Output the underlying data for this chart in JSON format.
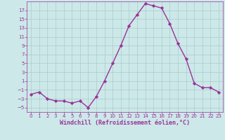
{
  "x": [
    0,
    1,
    2,
    3,
    4,
    5,
    6,
    7,
    8,
    9,
    10,
    11,
    12,
    13,
    14,
    15,
    16,
    17,
    18,
    19,
    20,
    21,
    22,
    23
  ],
  "y": [
    -2,
    -1.5,
    -3,
    -3.5,
    -3.5,
    -4,
    -3.5,
    -5,
    -2.5,
    1,
    5,
    9,
    13.5,
    16,
    18.5,
    18,
    17.5,
    14,
    9.5,
    6,
    0.5,
    -0.5,
    -0.5,
    -1.5
  ],
  "line_color": "#993399",
  "marker": "D",
  "marker_size": 2.2,
  "bg_color": "#cce8e8",
  "grid_color": "#aacccc",
  "xlabel": "Windchill (Refroidissement éolien,°C)",
  "ylabel": "",
  "title": "",
  "xlim": [
    -0.5,
    23.5
  ],
  "ylim": [
    -6,
    19
  ],
  "yticks": [
    -5,
    -3,
    -1,
    1,
    3,
    5,
    7,
    9,
    11,
    13,
    15,
    17
  ],
  "xticks": [
    0,
    1,
    2,
    3,
    4,
    5,
    6,
    7,
    8,
    9,
    10,
    11,
    12,
    13,
    14,
    15,
    16,
    17,
    18,
    19,
    20,
    21,
    22,
    23
  ],
  "tick_color": "#993399",
  "tick_fontsize": 5.0,
  "xlabel_fontsize": 6.0,
  "line_width": 1.0
}
